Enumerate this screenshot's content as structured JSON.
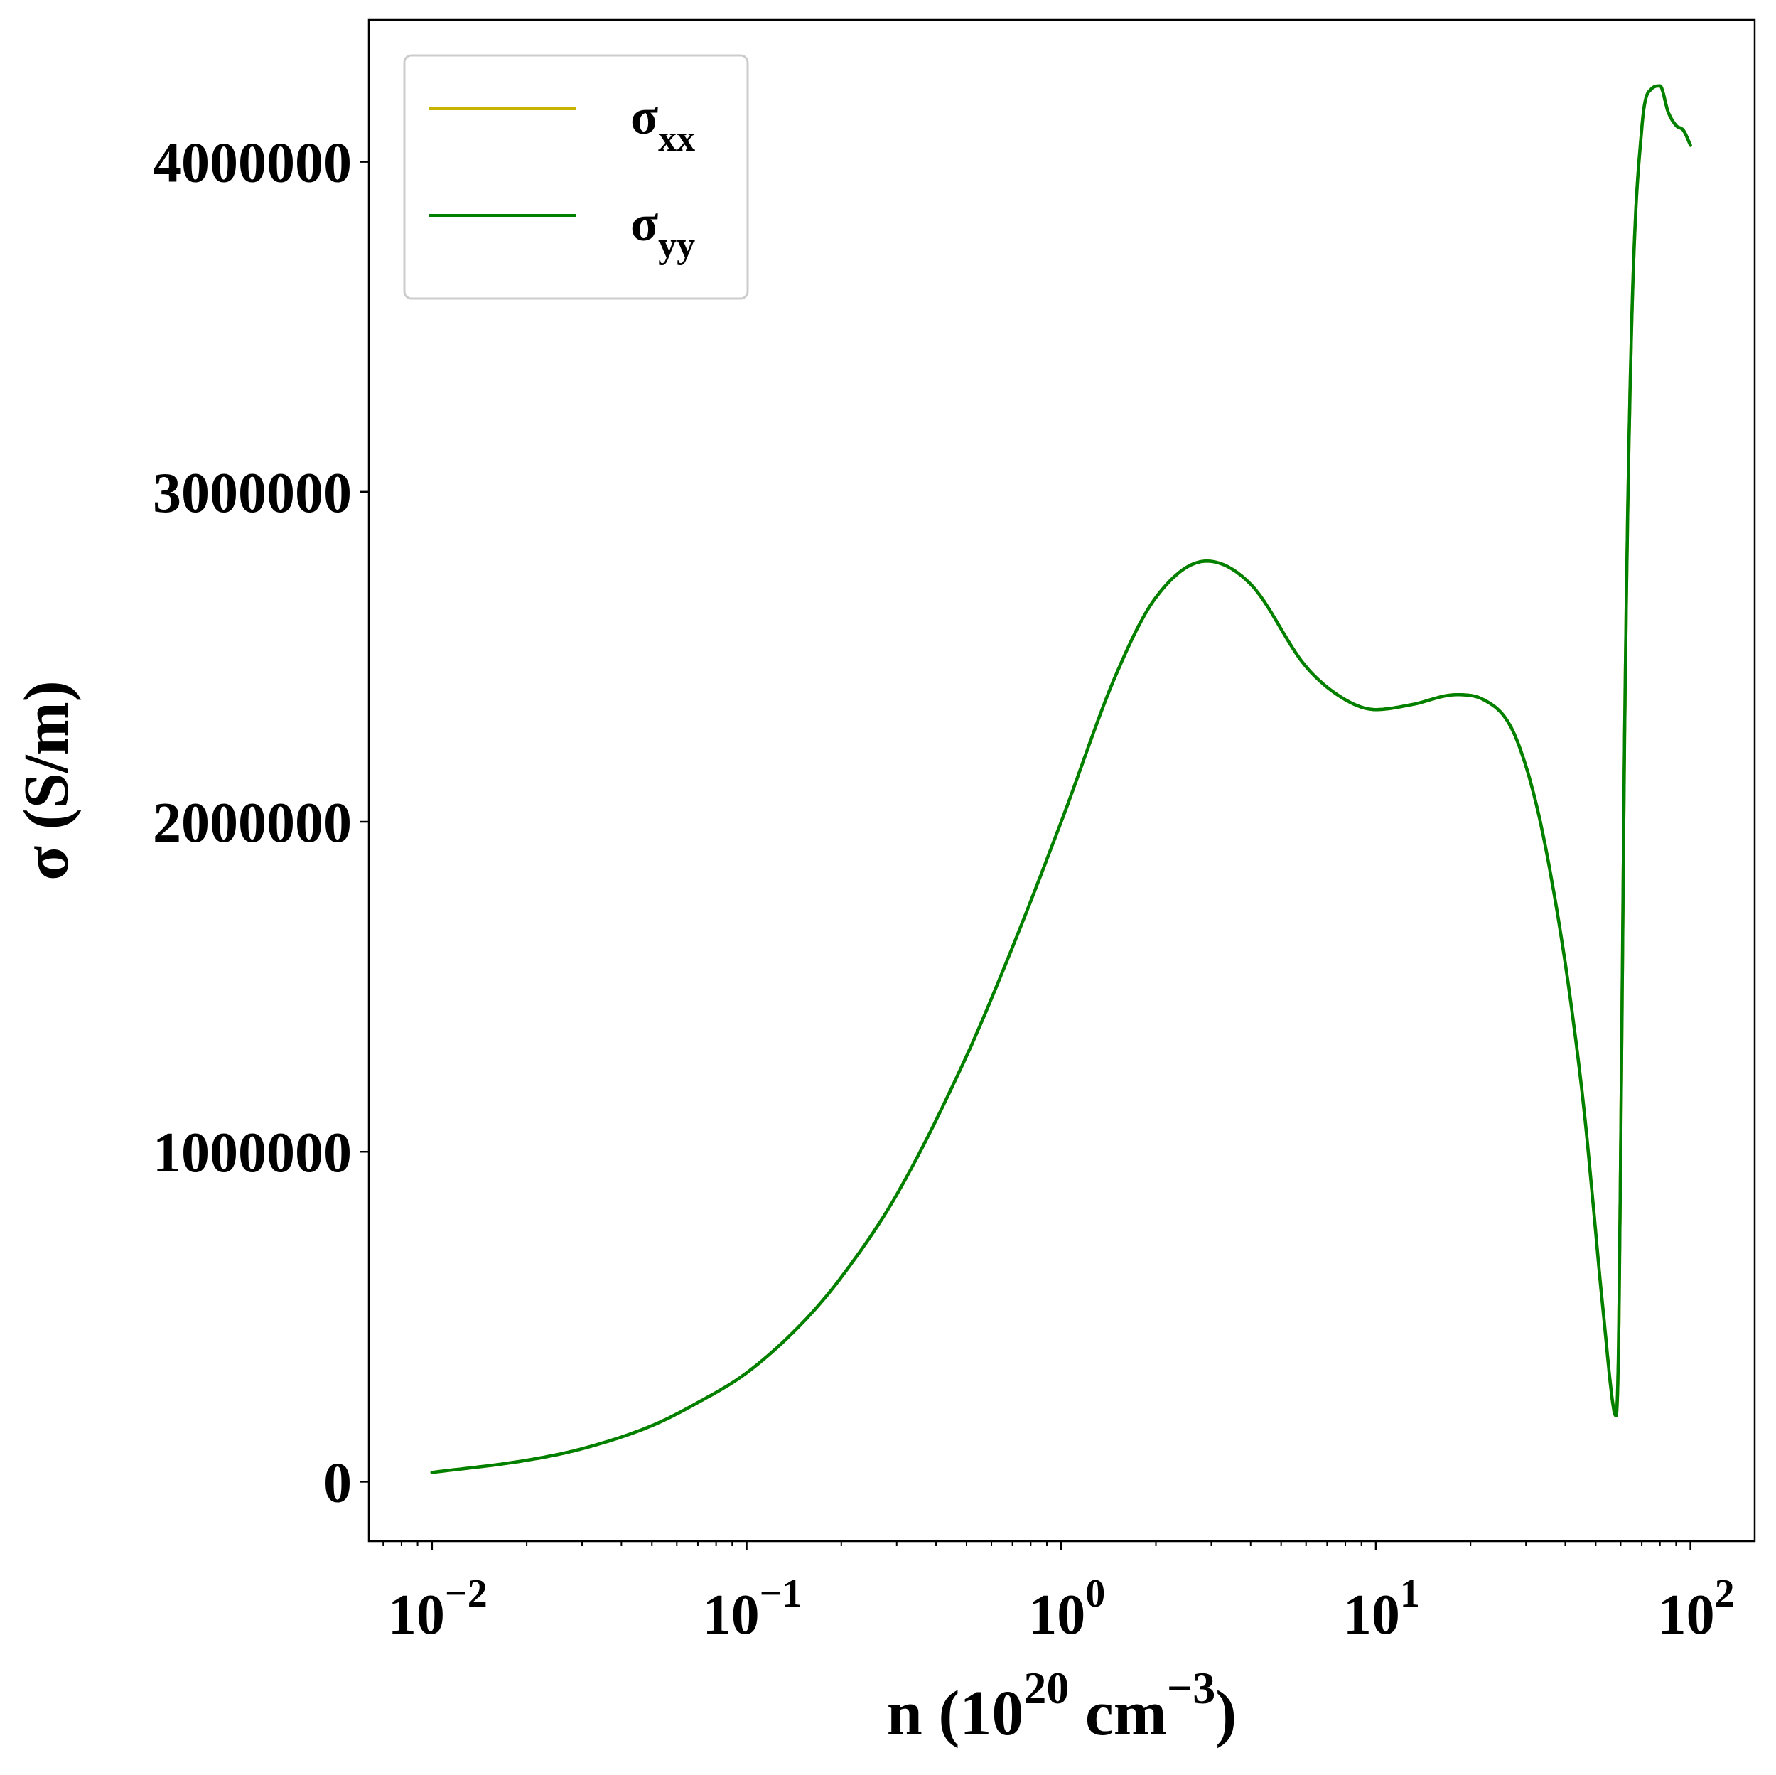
{
  "chart_data": {
    "type": "line",
    "xlabel": {
      "base": "n (10",
      "sup1": "20",
      "mid": " cm",
      "sup2": "−3",
      "end": ")"
    },
    "ylabel": "σ (S/m)",
    "xscale": "log",
    "xlim": [
      0.0063,
      160
    ],
    "ylim": [
      -180000,
      4430000
    ],
    "x_ticks": [
      {
        "value": 0.01,
        "base": "10",
        "exp": "−2"
      },
      {
        "value": 0.1,
        "base": "10",
        "exp": "−1"
      },
      {
        "value": 1,
        "base": "10",
        "exp": "0"
      },
      {
        "value": 10,
        "base": "10",
        "exp": "1"
      },
      {
        "value": 100,
        "base": "10",
        "exp": "2"
      }
    ],
    "y_ticks": [
      {
        "value": 0,
        "label": "0"
      },
      {
        "value": 1000000,
        "label": "1000000"
      },
      {
        "value": 2000000,
        "label": "2000000"
      },
      {
        "value": 3000000,
        "label": "3000000"
      },
      {
        "value": 4000000,
        "label": "4000000"
      }
    ],
    "grid": false,
    "legend": {
      "position": "top-left",
      "entries": [
        {
          "symbol": "σ",
          "sub": "xx",
          "color": "#c8b400"
        },
        {
          "symbol": "σ",
          "sub": "yy",
          "color": "#008000"
        }
      ]
    },
    "series": [
      {
        "name_symbol": "σ",
        "name_sub": "xx",
        "color": "#c8b400",
        "x": [
          0.01,
          0.02,
          0.03,
          0.05,
          0.07,
          0.1,
          0.15,
          0.2,
          0.3,
          0.5,
          0.7,
          1.0,
          1.5,
          2.0,
          2.9,
          4.0,
          6.0,
          8.0,
          10.0,
          13.0,
          18.0,
          22.0,
          28.0,
          35.0,
          45.0,
          53.0,
          57.0,
          58.0,
          59.0,
          60.0,
          62.0,
          65.0,
          70.0,
          75.0,
          80.0,
          85.0,
          90.0,
          95.0,
          100.0
        ],
        "values": [
          28000,
          65000,
          100000,
          170000,
          240000,
          330000,
          480000,
          620000,
          870000,
          1290000,
          1620000,
          2000000,
          2450000,
          2680000,
          2790000,
          2720000,
          2470000,
          2370000,
          2340000,
          2355000,
          2385000,
          2370000,
          2250000,
          1900000,
          1200000,
          500000,
          220000,
          200000,
          380000,
          1000000,
          2400000,
          3500000,
          4100000,
          4220000,
          4230000,
          4150000,
          4110000,
          4095000,
          4050000
        ]
      },
      {
        "name_symbol": "σ",
        "name_sub": "yy",
        "color": "#008000",
        "x": [
          0.01,
          0.02,
          0.03,
          0.05,
          0.07,
          0.1,
          0.15,
          0.2,
          0.3,
          0.5,
          0.7,
          1.0,
          1.5,
          2.0,
          2.9,
          4.0,
          6.0,
          8.0,
          10.0,
          13.0,
          18.0,
          22.0,
          28.0,
          35.0,
          45.0,
          53.0,
          57.0,
          58.0,
          59.0,
          60.0,
          62.0,
          65.0,
          70.0,
          75.0,
          80.0,
          85.0,
          90.0,
          95.0,
          100.0
        ],
        "values": [
          28000,
          65000,
          100000,
          170000,
          240000,
          330000,
          480000,
          620000,
          870000,
          1290000,
          1620000,
          2000000,
          2450000,
          2680000,
          2790000,
          2720000,
          2470000,
          2370000,
          2340000,
          2355000,
          2385000,
          2370000,
          2250000,
          1900000,
          1200000,
          500000,
          220000,
          200000,
          380000,
          1000000,
          2400000,
          3500000,
          4100000,
          4220000,
          4230000,
          4150000,
          4110000,
          4095000,
          4050000
        ]
      }
    ]
  }
}
